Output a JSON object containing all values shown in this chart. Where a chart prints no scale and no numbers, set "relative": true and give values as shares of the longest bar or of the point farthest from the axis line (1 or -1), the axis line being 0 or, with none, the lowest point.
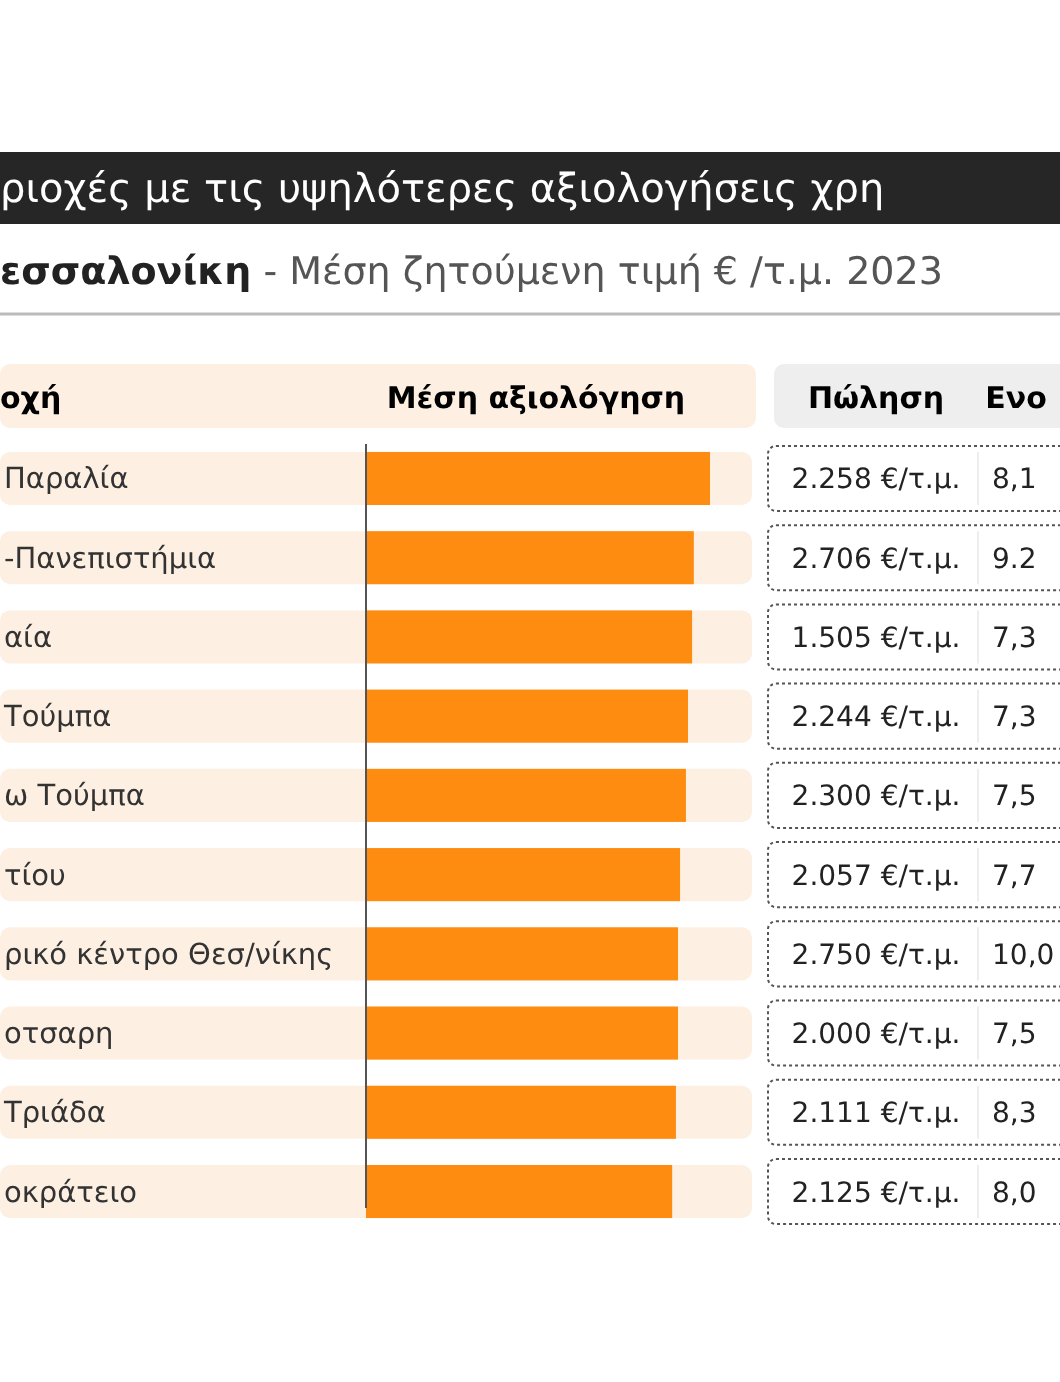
{
  "chart_data": {
    "type": "bar",
    "orientation": "horizontal",
    "relative": true,
    "title": "ριοχές με τις υψηλότερες αξιολογήσεις χρη",
    "subtitle": "εσσαλονίκη - Μέση ζητούμενη τιμή € /τ.μ. 2023",
    "ylabel": "οχή",
    "xlabel": "Μέση αξιολόγηση",
    "categories": [
      "Παραλία",
      "-Πανεπιστήμια",
      "αία",
      "Τούμπα",
      "ω Τούμπα",
      "τίου",
      "ρικό κέντρο Θεσ/νίκης",
      "οτσαρη",
      "Τριάδα",
      "οκράτειο"
    ],
    "values": [
      1,
      0.953,
      0.948,
      0.936,
      0.93,
      0.913,
      0.907,
      0.907,
      0.901,
      0.89
    ],
    "color": "#fd8c10",
    "annotations": [
      "Πώληση",
      "Ενο",
      "2.258 €/τ.μ.",
      "2.706 €/τ.μ.",
      "1.505 €/τ.μ.",
      "2.244 €/τ.μ.",
      "2.300 €/τ.μ.",
      "2.057 €/τ.μ.",
      "2.750 €/τ.μ.",
      "2.000 €/τ.μ.",
      "2.111 €/τ.μ.",
      "2.125 €/τ.μ.",
      "8,1",
      "9.2",
      "7,3",
      "7,3",
      "7,5",
      "7,7",
      "10,0",
      "7,5",
      "8,3",
      "8,0"
    ]
  }
}
